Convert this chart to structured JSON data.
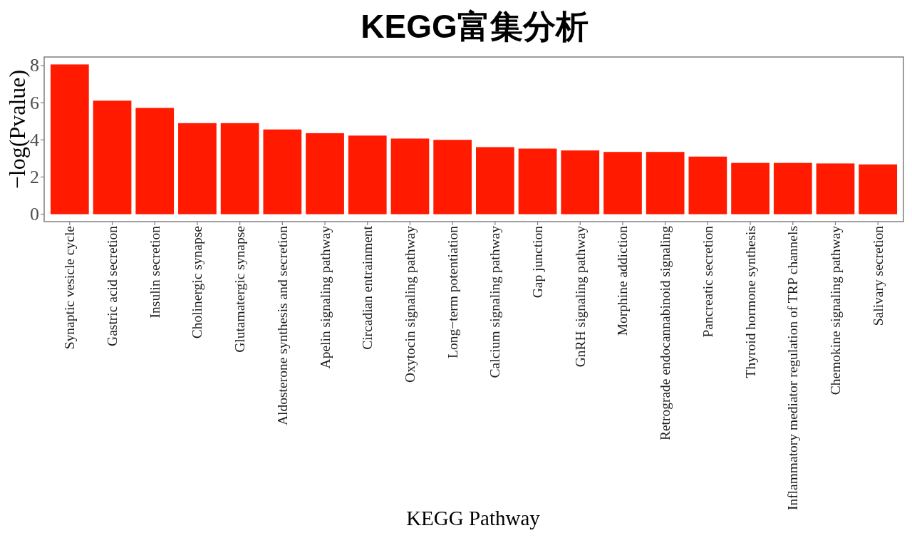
{
  "chart_data": {
    "type": "bar",
    "title": "KEGG富集分析",
    "xlabel": "KEGG Pathway",
    "ylabel": "−log(Pvalue)",
    "categories": [
      "Synaptic vesicle cycle",
      "Gastric acid secretion",
      "Insulin secretion",
      "Cholinergic synapse",
      "Glutamatergic synapse",
      "Aldosterone synthesis and secretion",
      "Apelin signaling pathway",
      "Circadian entrainment",
      "Oxytocin signaling pathway",
      "Long−term potentiation",
      "Calcium signaling pathway",
      "Gap junction",
      "GnRH signaling pathway",
      "Morphine addiction",
      "Retrograde endocannabinoid signaling",
      "Pancreatic secretion",
      "Thyroid hormone synthesis",
      "Inflammatory mediator regulation of TRP channels",
      "Chemokine signaling pathway",
      "Salivary secretion"
    ],
    "values": [
      8.06,
      6.11,
      5.72,
      4.9,
      4.9,
      4.56,
      4.36,
      4.23,
      4.07,
      4.0,
      3.61,
      3.53,
      3.43,
      3.35,
      3.35,
      3.1,
      2.76,
      2.76,
      2.73,
      2.68
    ],
    "color": "#ff1a00",
    "ylim": [
      -0.4,
      8.46
    ],
    "yticks": [
      0,
      2,
      4,
      6,
      8
    ]
  }
}
